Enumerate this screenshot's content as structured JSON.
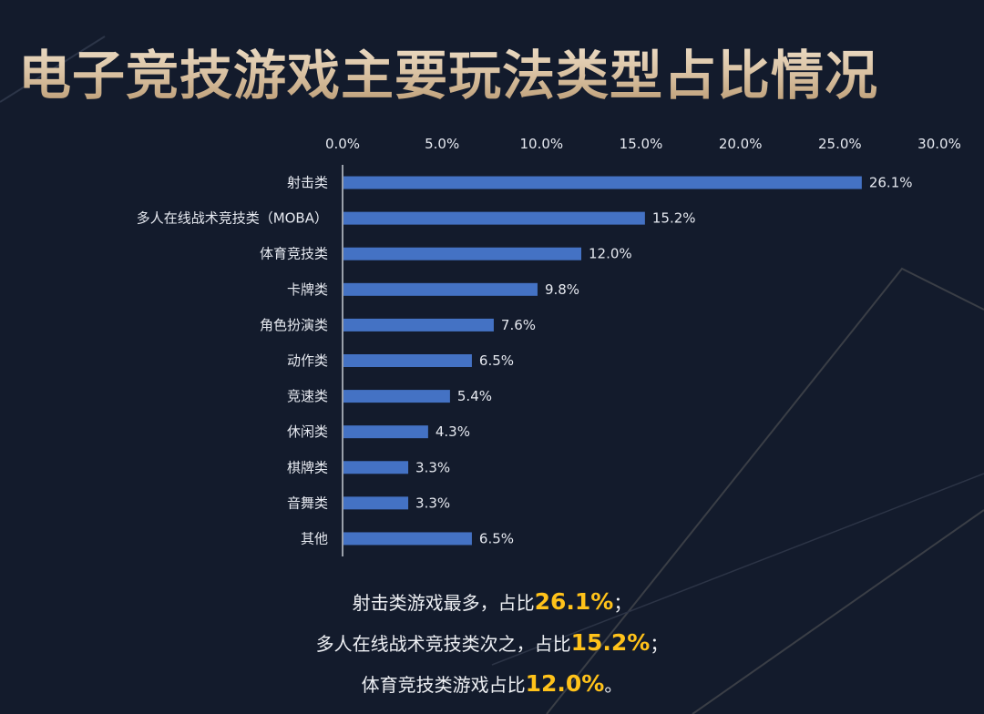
{
  "title": "电子竞技游戏主要玩法类型占比情况",
  "chart_data": {
    "type": "bar",
    "orientation": "horizontal",
    "categories": [
      "射击类",
      "多人在线战术竞技类（MOBA）",
      "体育竞技类",
      "卡牌类",
      "角色扮演类",
      "动作类",
      "竞速类",
      "休闲类",
      "棋牌类",
      "音舞类",
      "其他"
    ],
    "values": [
      26.1,
      15.2,
      12.0,
      9.8,
      7.6,
      6.5,
      5.4,
      4.3,
      3.3,
      3.3,
      6.5
    ],
    "value_labels": [
      "26.1%",
      "15.2%",
      "12.0%",
      "9.8%",
      "7.6%",
      "6.5%",
      "5.4%",
      "4.3%",
      "3.3%",
      "3.3%",
      "6.5%"
    ],
    "x_ticks": [
      "0.0%",
      "5.0%",
      "10.0%",
      "15.0%",
      "20.0%",
      "25.0%",
      "30.0%"
    ],
    "xlim": [
      0,
      30
    ],
    "x_axis_position": "top",
    "grid": false,
    "bar_color": "#4472c4"
  },
  "summary": [
    {
      "prefix": "射击类游戏最多，占比",
      "value": "26.1%",
      "suffix": "；"
    },
    {
      "prefix": "多人在线战术竞技类次之，占比",
      "value": "15.2%",
      "suffix": "；"
    },
    {
      "prefix": "体育竞技类游戏占比",
      "value": "12.0%",
      "suffix": "。"
    }
  ],
  "colors": {
    "background": "#131b2c",
    "highlight": "#ffc21a",
    "title_gold": "#d8c0a0"
  }
}
